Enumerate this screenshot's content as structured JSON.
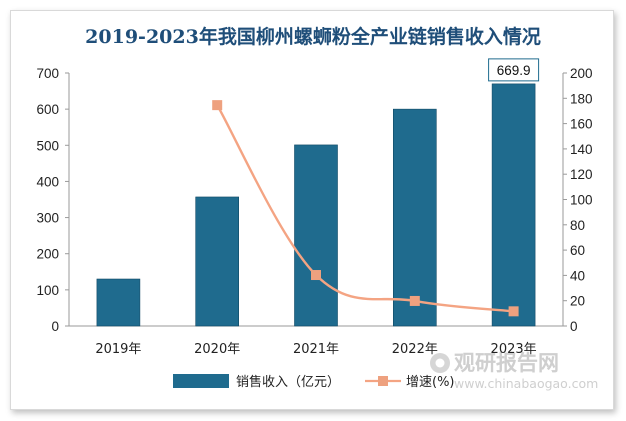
{
  "chart_data": {
    "type": "bar+line",
    "title": "2019-2023年我国柳州螺蛳粉全产业链销售收入情况",
    "categories": [
      "2019年",
      "2020年",
      "2021年",
      "2022年",
      "2023年"
    ],
    "series": [
      {
        "name": "销售收入（亿元）",
        "type": "bar",
        "axis": "left",
        "color": "#1f6b8e",
        "values": [
          130,
          357,
          501,
          600,
          669.9
        ]
      },
      {
        "name": "增速(%)",
        "type": "line",
        "axis": "right",
        "color": "#f4a483",
        "values": [
          null,
          174.6,
          40.3,
          19.8,
          11.6
        ]
      }
    ],
    "y_left": {
      "min": 0,
      "max": 700,
      "ticks": [
        "0",
        "100",
        "200",
        "300",
        "400",
        "500",
        "600",
        "700"
      ]
    },
    "y_right": {
      "min": 0,
      "max": 200,
      "ticks": [
        "0",
        "20",
        "40",
        "60",
        "80",
        "100",
        "120",
        "140",
        "160",
        "180",
        "200"
      ]
    },
    "callout": {
      "label": "669.9",
      "category": "2023年"
    },
    "legend_position": "bottom",
    "grid": false,
    "watermark": {
      "cn": "观研报告网",
      "en": "www.chinabaogao.com"
    },
    "colors": {
      "title": "#1f4e79",
      "bar": "#1f6b8e",
      "line": "#f4a483",
      "marker": "#eea17f",
      "callout_border": "#1f6b8e"
    }
  }
}
